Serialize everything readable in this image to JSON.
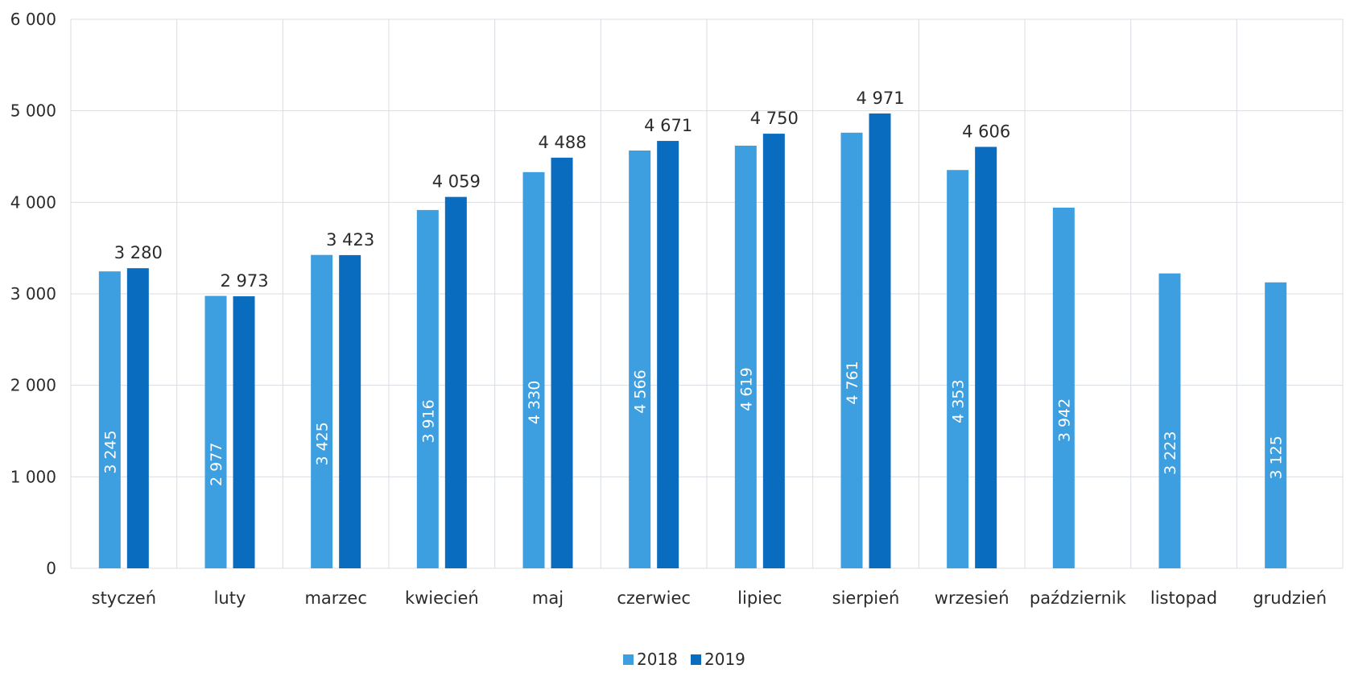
{
  "chart_data": {
    "type": "bar",
    "categories": [
      "styczeń",
      "luty",
      "marzec",
      "kwiecień",
      "maj",
      "czerwiec",
      "lipiec",
      "sierpień",
      "wrzesień",
      "październik",
      "listopad",
      "grudzień"
    ],
    "series": [
      {
        "name": "2018",
        "color": "#3d9ee0",
        "values": [
          3245,
          2977,
          3425,
          3916,
          4330,
          4566,
          4619,
          4761,
          4353,
          3942,
          3223,
          3125
        ],
        "labels": [
          "3 245",
          "2 977",
          "3 425",
          "3 916",
          "4 330",
          "4 566",
          "4 619",
          "4 761",
          "4 353",
          "3 942",
          "3 223",
          "3 125"
        ],
        "label_position": "inside-rotated"
      },
      {
        "name": "2019",
        "color": "#0a6cbf",
        "values": [
          3280,
          2973,
          3423,
          4059,
          4488,
          4671,
          4750,
          4971,
          4606,
          null,
          null,
          null
        ],
        "labels": [
          "3 280",
          "2 973",
          "3 423",
          "4 059",
          "4 488",
          "4 671",
          "4 750",
          "4 971",
          "4 606",
          null,
          null,
          null
        ],
        "label_position": "above"
      }
    ],
    "ylim": [
      0,
      6000
    ],
    "yticks": [
      0,
      1000,
      2000,
      3000,
      4000,
      5000,
      6000
    ],
    "ytick_labels": [
      "0",
      "1 000",
      "2 000",
      "3 000",
      "4 000",
      "5 000",
      "6 000"
    ],
    "grid": true,
    "legend_position": "bottom-center"
  }
}
